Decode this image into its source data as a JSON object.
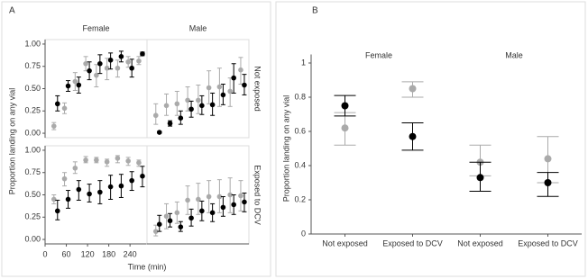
{
  "chart_data": [
    {
      "type": "scatter",
      "label": "A",
      "ylabel": "Proportion landing on any vial",
      "xlabel": "Time (min)",
      "columns": [
        "Female",
        "Male"
      ],
      "rows": [
        "Not exposed",
        "Exposed to DCV"
      ],
      "xlim": [
        0,
        288
      ],
      "xticks": [
        0,
        60,
        120,
        180,
        240
      ],
      "ylim": [
        -0.05,
        1.05
      ],
      "yticks": [
        {
          "value": 0,
          "label": "0.00"
        },
        {
          "value": 0.25,
          "label": "0.25"
        },
        {
          "value": 0.5,
          "label": "0.50"
        },
        {
          "value": 0.75,
          "label": "0.75"
        },
        {
          "value": 1,
          "label": "1.00"
        }
      ],
      "x": [
        30,
        60,
        90,
        120,
        150,
        180,
        210,
        240,
        270
      ],
      "panels": [
        {
          "series": [
            {
              "color": "#aaaaaa",
              "values": [
                0.08,
                0.28,
                0.58,
                0.78,
                0.65,
                0.73,
                0.73,
                0.8,
                0.81
              ],
              "low": [
                0.04,
                0.22,
                0.48,
                0.7,
                0.52,
                0.6,
                0.63,
                0.74,
                0.77
              ],
              "high": [
                0.12,
                0.34,
                0.68,
                0.86,
                0.77,
                0.84,
                0.82,
                0.86,
                0.86
              ]
            },
            {
              "color": "#000000",
              "values": [
                0.33,
                0.53,
                0.54,
                0.7,
                0.78,
                0.82,
                0.86,
                0.73,
                0.89
              ],
              "low": [
                0.25,
                0.47,
                0.45,
                0.6,
                0.67,
                0.72,
                0.8,
                0.63,
                0.87
              ],
              "high": [
                0.42,
                0.59,
                0.63,
                0.8,
                0.88,
                0.9,
                0.92,
                0.83,
                0.91
              ]
            }
          ]
        },
        {
          "series": [
            {
              "color": "#aaaaaa",
              "values": [
                0.2,
                0.31,
                0.33,
                0.37,
                0.37,
                0.51,
                0.52,
                0.47,
                0.71
              ],
              "low": [
                0.1,
                0.2,
                0.2,
                0.25,
                0.22,
                0.33,
                0.3,
                0.3,
                0.55
              ],
              "high": [
                0.33,
                0.44,
                0.47,
                0.52,
                0.54,
                0.7,
                0.73,
                0.62,
                0.85
              ]
            },
            {
              "color": "#000000",
              "values": [
                0.01,
                0.11,
                0.17,
                0.27,
                0.31,
                0.32,
                0.43,
                0.62,
                0.54
              ],
              "low": [
                0,
                0.08,
                0.1,
                0.18,
                0.21,
                0.2,
                0.32,
                0.45,
                0.43
              ],
              "high": [
                0.02,
                0.14,
                0.25,
                0.36,
                0.42,
                0.45,
                0.55,
                0.78,
                0.66
              ]
            }
          ]
        },
        {
          "series": [
            {
              "color": "#aaaaaa",
              "values": [
                0.45,
                0.68,
                0.8,
                0.89,
                0.89,
                0.87,
                0.91,
                0.88,
                0.86
              ],
              "low": [
                0.4,
                0.6,
                0.74,
                0.86,
                0.86,
                0.82,
                0.86,
                0.83,
                0.82
              ],
              "high": [
                0.5,
                0.75,
                0.87,
                0.93,
                0.92,
                0.9,
                0.94,
                0.92,
                0.89
              ]
            },
            {
              "color": "#000000",
              "values": [
                0.32,
                0.45,
                0.56,
                0.51,
                0.53,
                0.59,
                0.6,
                0.66,
                0.71
              ],
              "low": [
                0.22,
                0.35,
                0.44,
                0.42,
                0.4,
                0.45,
                0.47,
                0.55,
                0.59
              ],
              "high": [
                0.44,
                0.55,
                0.66,
                0.62,
                0.66,
                0.72,
                0.73,
                0.76,
                0.82
              ]
            }
          ]
        },
        {
          "series": [
            {
              "color": "#aaaaaa",
              "values": [
                0.09,
                0.26,
                0.3,
                0.44,
                0.45,
                0.48,
                0.48,
                0.5,
                0.49
              ],
              "low": [
                0.04,
                0.12,
                0.18,
                0.28,
                0.28,
                0.3,
                0.3,
                0.3,
                0.32
              ],
              "high": [
                0.16,
                0.4,
                0.42,
                0.6,
                0.63,
                0.66,
                0.67,
                0.69,
                0.66
              ]
            },
            {
              "color": "#000000",
              "values": [
                0.17,
                0.21,
                0.14,
                0.24,
                0.32,
                0.3,
                0.36,
                0.39,
                0.42
              ],
              "low": [
                0.09,
                0.14,
                0.09,
                0.15,
                0.21,
                0.2,
                0.26,
                0.28,
                0.31
              ],
              "high": [
                0.27,
                0.29,
                0.2,
                0.34,
                0.43,
                0.4,
                0.48,
                0.5,
                0.52
              ]
            }
          ]
        }
      ]
    },
    {
      "type": "dot",
      "label": "B",
      "ylabel": "Proportion landing on any vial",
      "columns": [
        "Female",
        "Male"
      ],
      "categories": [
        "Not exposed",
        "Exposed to DCV"
      ],
      "ylim": [
        0,
        1.05
      ],
      "yticks": [
        0,
        0.2,
        0.4,
        0.6,
        0.8,
        1
      ],
      "panels": [
        {
          "series": [
            {
              "color": "#aaaaaa",
              "values": [
                0.62,
                0.85
              ],
              "low": [
                0.52,
                0.8
              ],
              "high": [
                0.71,
                0.89
              ]
            },
            {
              "color": "#000000",
              "values": [
                0.75,
                0.57
              ],
              "low": [
                0.69,
                0.49
              ],
              "high": [
                0.81,
                0.65
              ]
            }
          ]
        },
        {
          "series": [
            {
              "color": "#aaaaaa",
              "values": [
                0.42,
                0.44
              ],
              "low": [
                0.34,
                0.3
              ],
              "high": [
                0.52,
                0.57
              ]
            },
            {
              "color": "#000000",
              "values": [
                0.33,
                0.3
              ],
              "low": [
                0.25,
                0.22
              ],
              "high": [
                0.42,
                0.36
              ]
            }
          ]
        }
      ]
    }
  ]
}
